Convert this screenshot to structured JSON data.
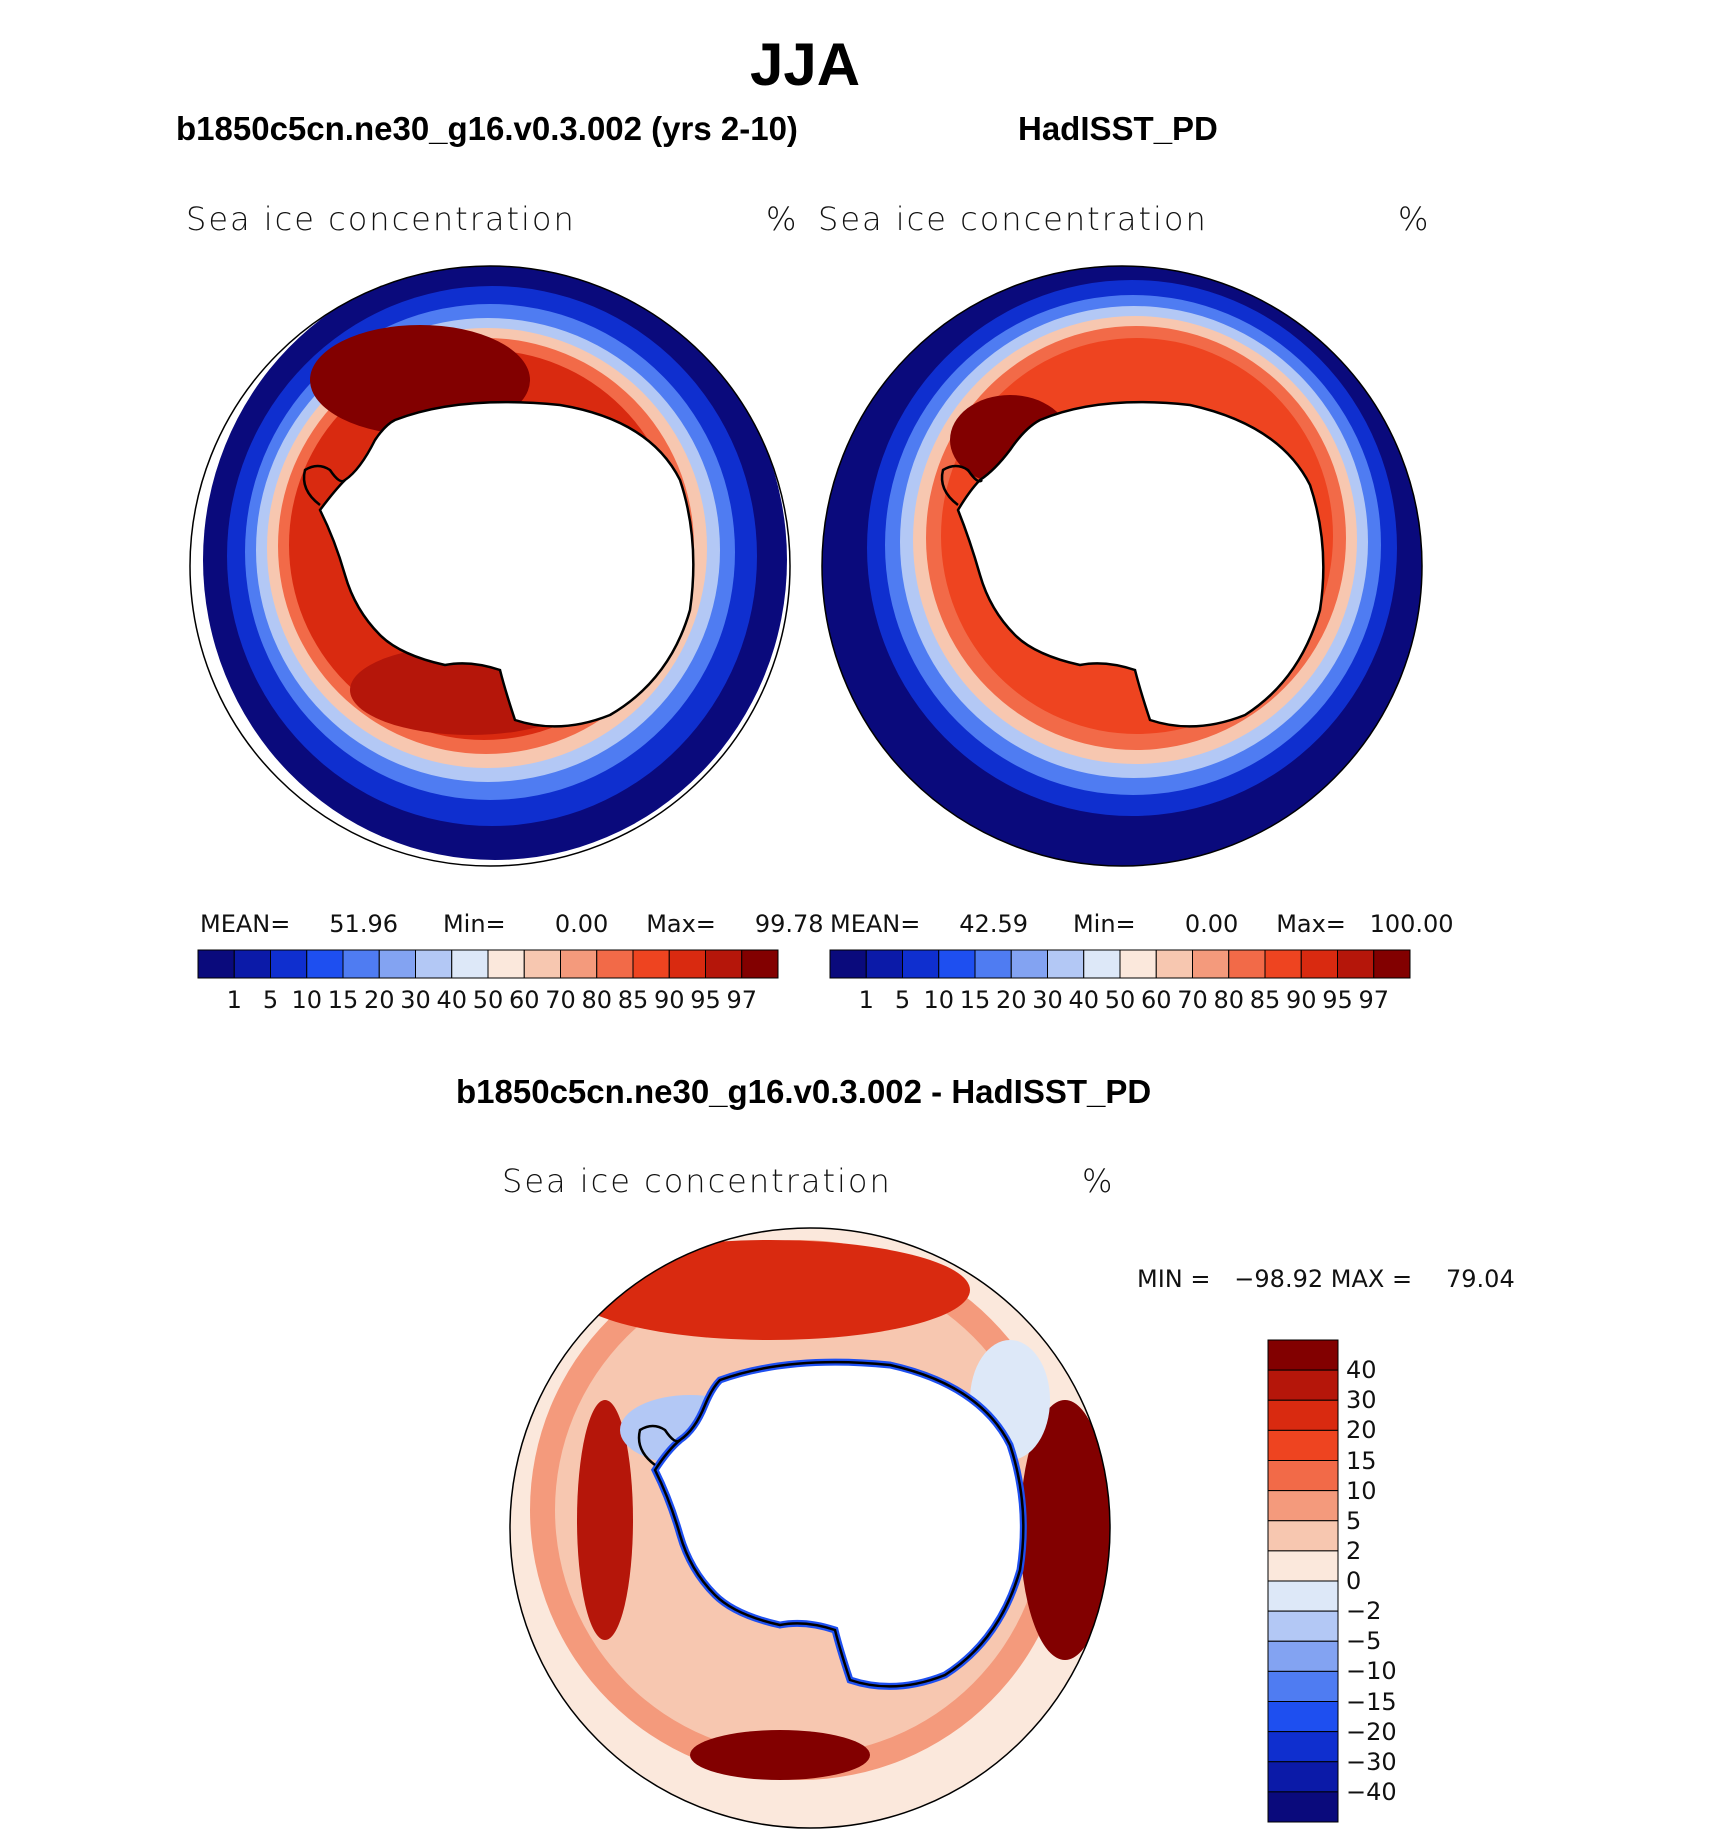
{
  "title": "JJA",
  "panels": [
    {
      "case": "b1850c5cn.ne30_g16.v0.3.002 (yrs 2-10)",
      "variable": "Sea ice concentration",
      "units": "%",
      "stats": {
        "mean_label": "MEAN=",
        "mean": "51.96",
        "min_label": "Min=",
        "min": "0.00",
        "max_label": "Max=",
        "max": "99.78"
      }
    },
    {
      "case": "HadISST_PD",
      "variable": "Sea ice concentration",
      "units": "%",
      "stats": {
        "mean_label": "MEAN=",
        "mean": "42.59",
        "min_label": "Min=",
        "min": "0.00",
        "max_label": "Max=",
        "max": "100.00"
      }
    }
  ],
  "difference": {
    "title": "b1850c5cn.ne30_g16.v0.3.002 - HadISST_PD",
    "variable": "Sea ice concentration",
    "units": "%",
    "minmax": {
      "min_label": "MIN =",
      "min": "−98.92",
      "max_label": "MAX =",
      "max": "79.04"
    }
  },
  "colorbar_levels": [
    "1",
    "5",
    "10",
    "15",
    "20",
    "30",
    "40",
    "50",
    "60",
    "70",
    "80",
    "85",
    "90",
    "95",
    "97"
  ],
  "colorbar_colors": [
    "#0a0a7c",
    "#0b1aa8",
    "#0f2fcf",
    "#1e4ff0",
    "#4f7cf2",
    "#83a3f2",
    "#b3c8f5",
    "#dde8f8",
    "#fbe8dc",
    "#f7c7b0",
    "#f49a7c",
    "#f26a48",
    "#ee4420",
    "#d92a10",
    "#b5160a",
    "#820000"
  ],
  "diff_levels": [
    "40",
    "30",
    "20",
    "15",
    "10",
    "5",
    "2",
    "0",
    "−2",
    "−5",
    "−10",
    "−15",
    "−20",
    "−30",
    "−40"
  ],
  "diff_colors": [
    "#820000",
    "#b5160a",
    "#d92a10",
    "#ee4420",
    "#f26a48",
    "#f49a7c",
    "#f7c7b0",
    "#fbe8dc",
    "#dde8f8",
    "#b3c8f5",
    "#83a3f2",
    "#4f7cf2",
    "#1e4ff0",
    "#0f2fcf",
    "#0b1aa8",
    "#0a0a7c"
  ],
  "colors": {
    "land": "#ffffff",
    "coast": "#000000"
  }
}
